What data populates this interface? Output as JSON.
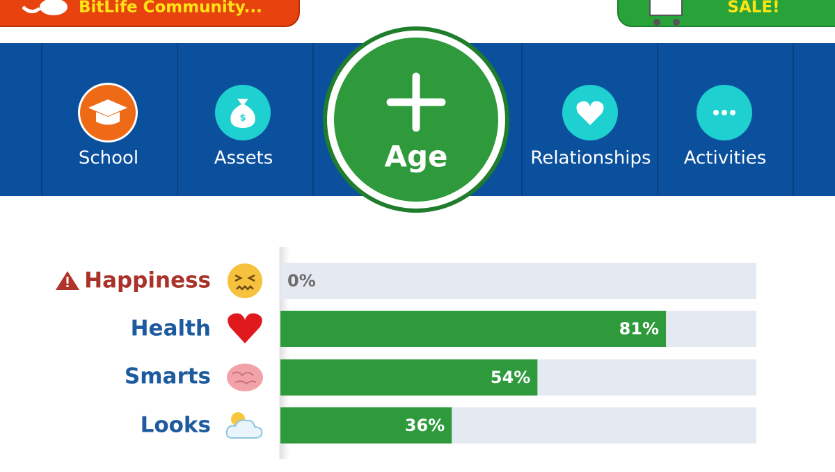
{
  "header": {
    "community_button": "BitLife Community...",
    "sale_button": "SALE!"
  },
  "nav": {
    "items": [
      "School",
      "Assets",
      "Age",
      "Relationships",
      "Activities"
    ]
  },
  "stats": [
    {
      "name": "Happiness",
      "value": 0,
      "value_label": "0%"
    },
    {
      "name": "Health",
      "value": 81,
      "value_label": "81%"
    },
    {
      "name": "Smarts",
      "value": 54,
      "value_label": "54%"
    },
    {
      "name": "Looks",
      "value": 36,
      "value_label": "36%"
    }
  ]
}
